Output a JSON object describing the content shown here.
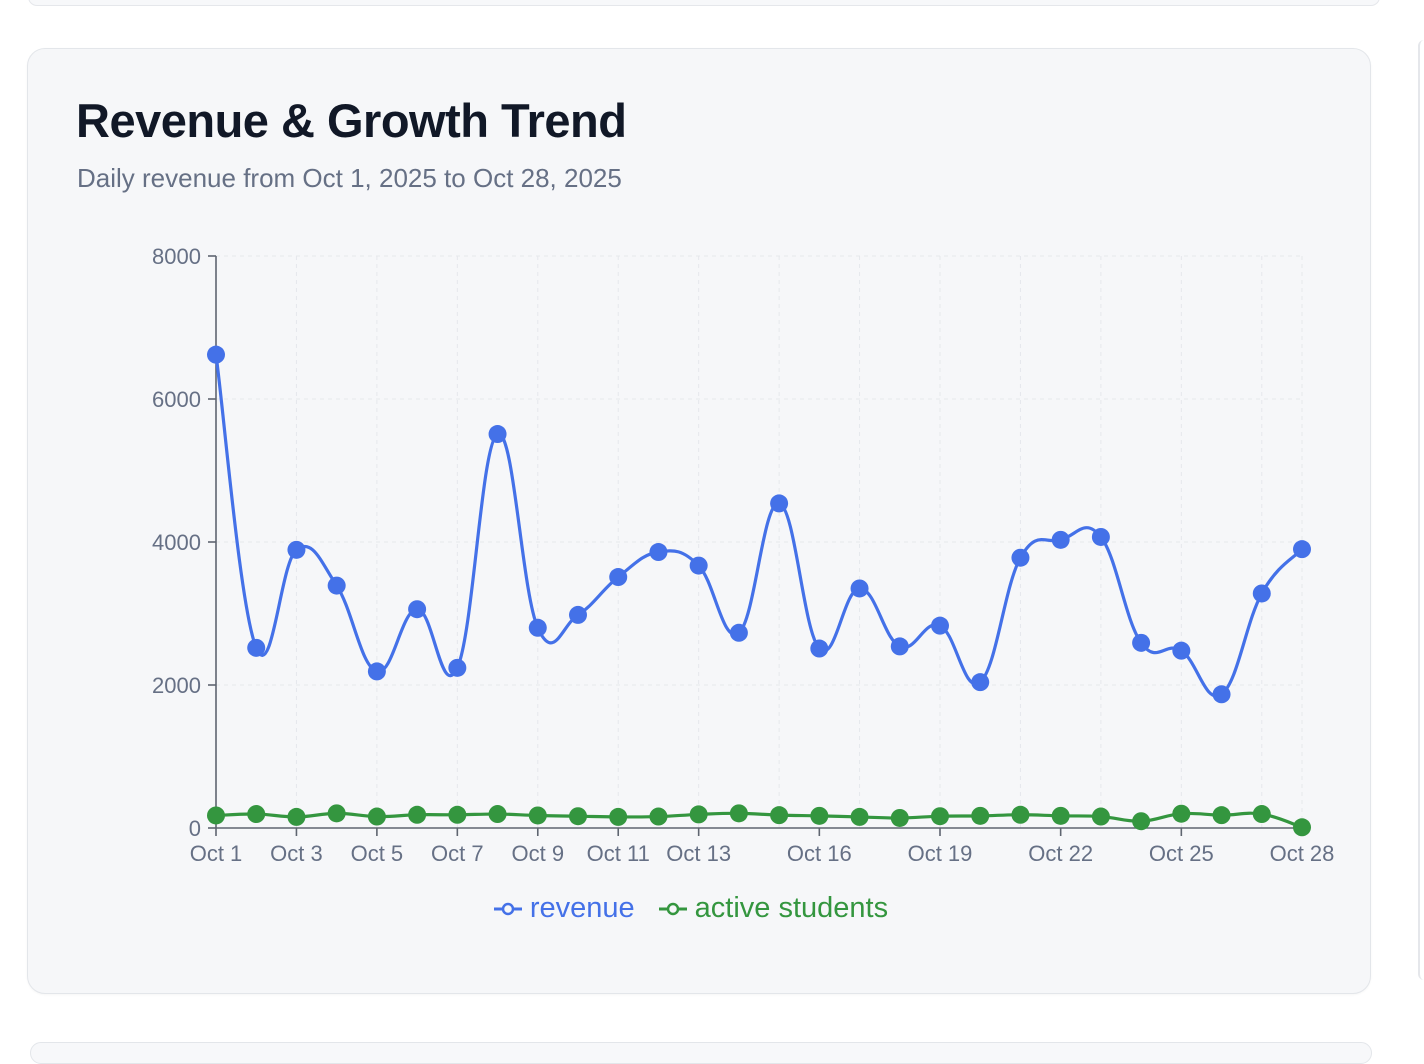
{
  "card": {
    "title": "Revenue & Growth Trend",
    "subtitle": "Daily revenue from Oct 1, 2025 to Oct 28, 2025"
  },
  "chart_data": {
    "type": "line",
    "y_ticks": [
      0,
      2000,
      4000,
      6000,
      8000
    ],
    "ylim": [
      0,
      8000
    ],
    "grid": true,
    "legend_position": "bottom-center",
    "x_tick_labels": [
      "Oct 1",
      "Oct 3",
      "Oct 5",
      "Oct 7",
      "Oct 9",
      "Oct 11",
      "Oct 13",
      "Oct 16",
      "Oct 19",
      "Oct 22",
      "Oct 25",
      "Oct 28"
    ],
    "x_tick_days": [
      1,
      3,
      5,
      7,
      9,
      11,
      13,
      16,
      19,
      22,
      25,
      28
    ],
    "days": [
      1,
      2,
      3,
      4,
      5,
      6,
      7,
      8,
      9,
      10,
      11,
      12,
      13,
      14,
      15,
      16,
      17,
      18,
      19,
      20,
      21,
      22,
      23,
      24,
      25,
      26,
      27,
      28
    ],
    "series": [
      {
        "name": "revenue",
        "color": "#4471e8",
        "values": [
          6620,
          2520,
          3890,
          3390,
          2190,
          3060,
          2240,
          5510,
          2800,
          2980,
          3510,
          3860,
          3670,
          2730,
          4540,
          2510,
          3350,
          2540,
          2830,
          2040,
          3780,
          4030,
          4070,
          2590,
          2480,
          1870,
          3280,
          3900
        ]
      },
      {
        "name": "active students",
        "color": "#34963f",
        "values": [
          175,
          195,
          155,
          205,
          160,
          185,
          185,
          195,
          175,
          165,
          155,
          160,
          190,
          205,
          180,
          170,
          155,
          140,
          165,
          170,
          185,
          170,
          160,
          95,
          200,
          180,
          195,
          10
        ]
      }
    ]
  }
}
